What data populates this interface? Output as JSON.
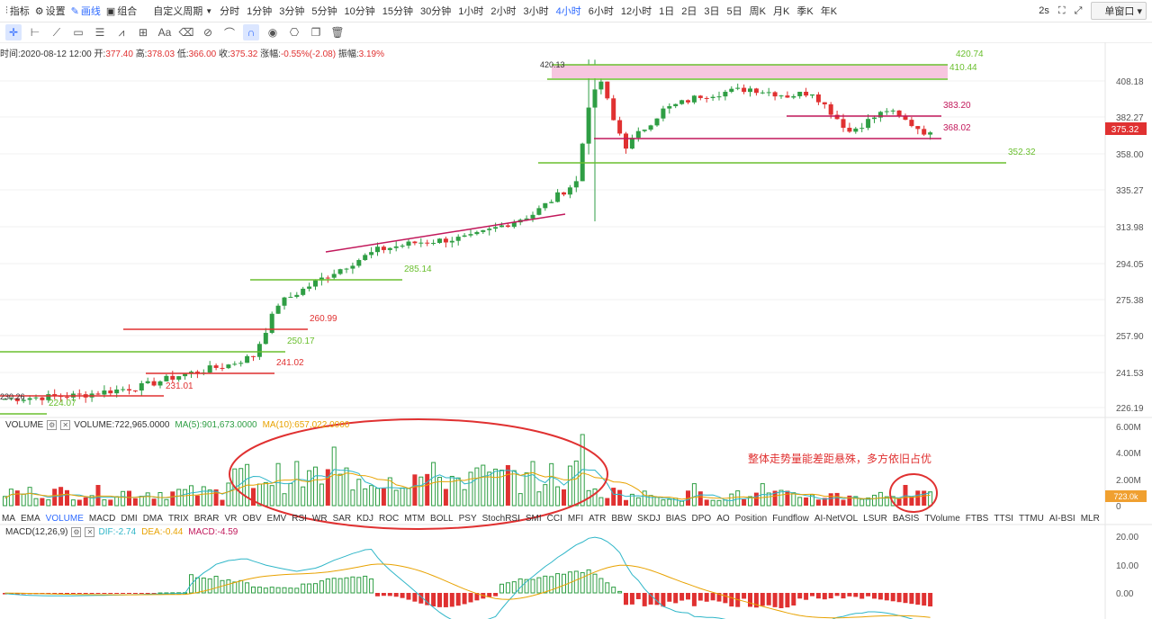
{
  "toolbar": {
    "indicator": "指标",
    "settings": "设置",
    "draw": "画线",
    "combine": "组合",
    "custom_period": "自定义周期",
    "periods": [
      "分时",
      "1分钟",
      "3分钟",
      "5分钟",
      "10分钟",
      "15分钟",
      "30分钟",
      "1小时",
      "2小时",
      "3小时",
      "4小时",
      "6小时",
      "12小时",
      "1日",
      "2日",
      "3日",
      "5日",
      "周K",
      "月K",
      "季K",
      "年K"
    ],
    "active_period": "4小时",
    "refresh": "2s",
    "window_mode": "单窗口"
  },
  "ohlc": {
    "time_label": "时间:",
    "time": "2020-08-12 12:00",
    "open_label": "开:",
    "open": "377.40",
    "high_label": "高:",
    "high": "378.03",
    "low_label": "低:",
    "low": "366.00",
    "close_label": "收:",
    "close": "375.32",
    "change_label": "涨幅:",
    "change": "-0.55%(-2.08)",
    "amp_label": "振幅:",
    "amp": "3.19%"
  },
  "price_axis": {
    "ticks": [
      "408.18",
      "382.27",
      "358.00",
      "335.27",
      "313.98",
      "294.05",
      "275.38",
      "257.90",
      "241.53",
      "226.19"
    ],
    "current": "375.32"
  },
  "drawings": {
    "labels": [
      "420.74",
      "410.44",
      "420.13",
      "383.20",
      "368.02",
      "352.32",
      "285.14",
      "260.99",
      "250.17",
      "241.02",
      "231.01",
      "224.07",
      "230.26"
    ]
  },
  "volume": {
    "title": "VOLUME",
    "value": "VOLUME:722,965.0000",
    "ma5": "MA(5):901,673.0000",
    "ma10": "MA(10):657,022.0000",
    "axis": [
      "6.00M",
      "4.00M",
      "2.00M",
      "0"
    ],
    "current": "723.0k",
    "annotation": "整体走势量能差距悬殊，多方依旧占优"
  },
  "indicators": {
    "items": [
      "MA",
      "EMA",
      "VOLUME",
      "MACD",
      "DMI",
      "DMA",
      "TRIX",
      "BRAR",
      "VR",
      "OBV",
      "EMV",
      "RSI",
      "WR",
      "SAR",
      "KDJ",
      "ROC",
      "MTM",
      "BOLL",
      "PSY",
      "StochRSI",
      "SMI",
      "CCI",
      "MFI",
      "ATR",
      "BBW",
      "SKDJ",
      "BIAS",
      "DPO",
      "AO",
      "Position",
      "Fundflow",
      "AI-NetVOL",
      "LSUR",
      "BASIS",
      "TVolume",
      "FTBS",
      "TTSI",
      "TTMU",
      "AI-BSI",
      "MLR"
    ],
    "active": "VOLUME"
  },
  "macd": {
    "title": "MACD(12,26,9)",
    "dif": "DIF:-2.74",
    "dea": "DEA:-0.44",
    "macd": "MACD:-4.59",
    "axis": [
      "20.00",
      "10.00",
      "0.00"
    ]
  },
  "colors": {
    "up": "#e03131",
    "down": "#2f9e44",
    "accent": "#2f6bff",
    "magenta": "#c2185b"
  }
}
